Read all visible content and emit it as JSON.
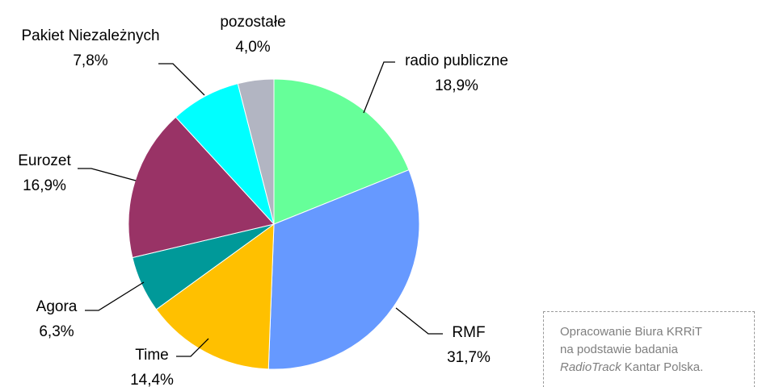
{
  "chart_data": {
    "type": "pie",
    "categories": [
      "radio publiczne",
      "RMF",
      "Time",
      "Agora",
      "Eurozet",
      "Pakiet Niezależnych",
      "pozostałe"
    ],
    "values": [
      18.9,
      31.7,
      14.4,
      6.3,
      16.9,
      7.8,
      4.0
    ],
    "value_labels": [
      "18,9%",
      "31,7%",
      "14,4%",
      "6,3%",
      "16,9%",
      "7,8%",
      "4,0%"
    ],
    "colors": [
      "#66ff99",
      "#6699ff",
      "#ffc000",
      "#009999",
      "#993366",
      "#00ffff",
      "#b2b5c2"
    ]
  },
  "note": {
    "line1": "Opracowanie Biura KRRiT",
    "line2": "na podstawie badania",
    "line3_italic": "RadioTrack",
    "line3_rest": "Kantar Polska."
  }
}
